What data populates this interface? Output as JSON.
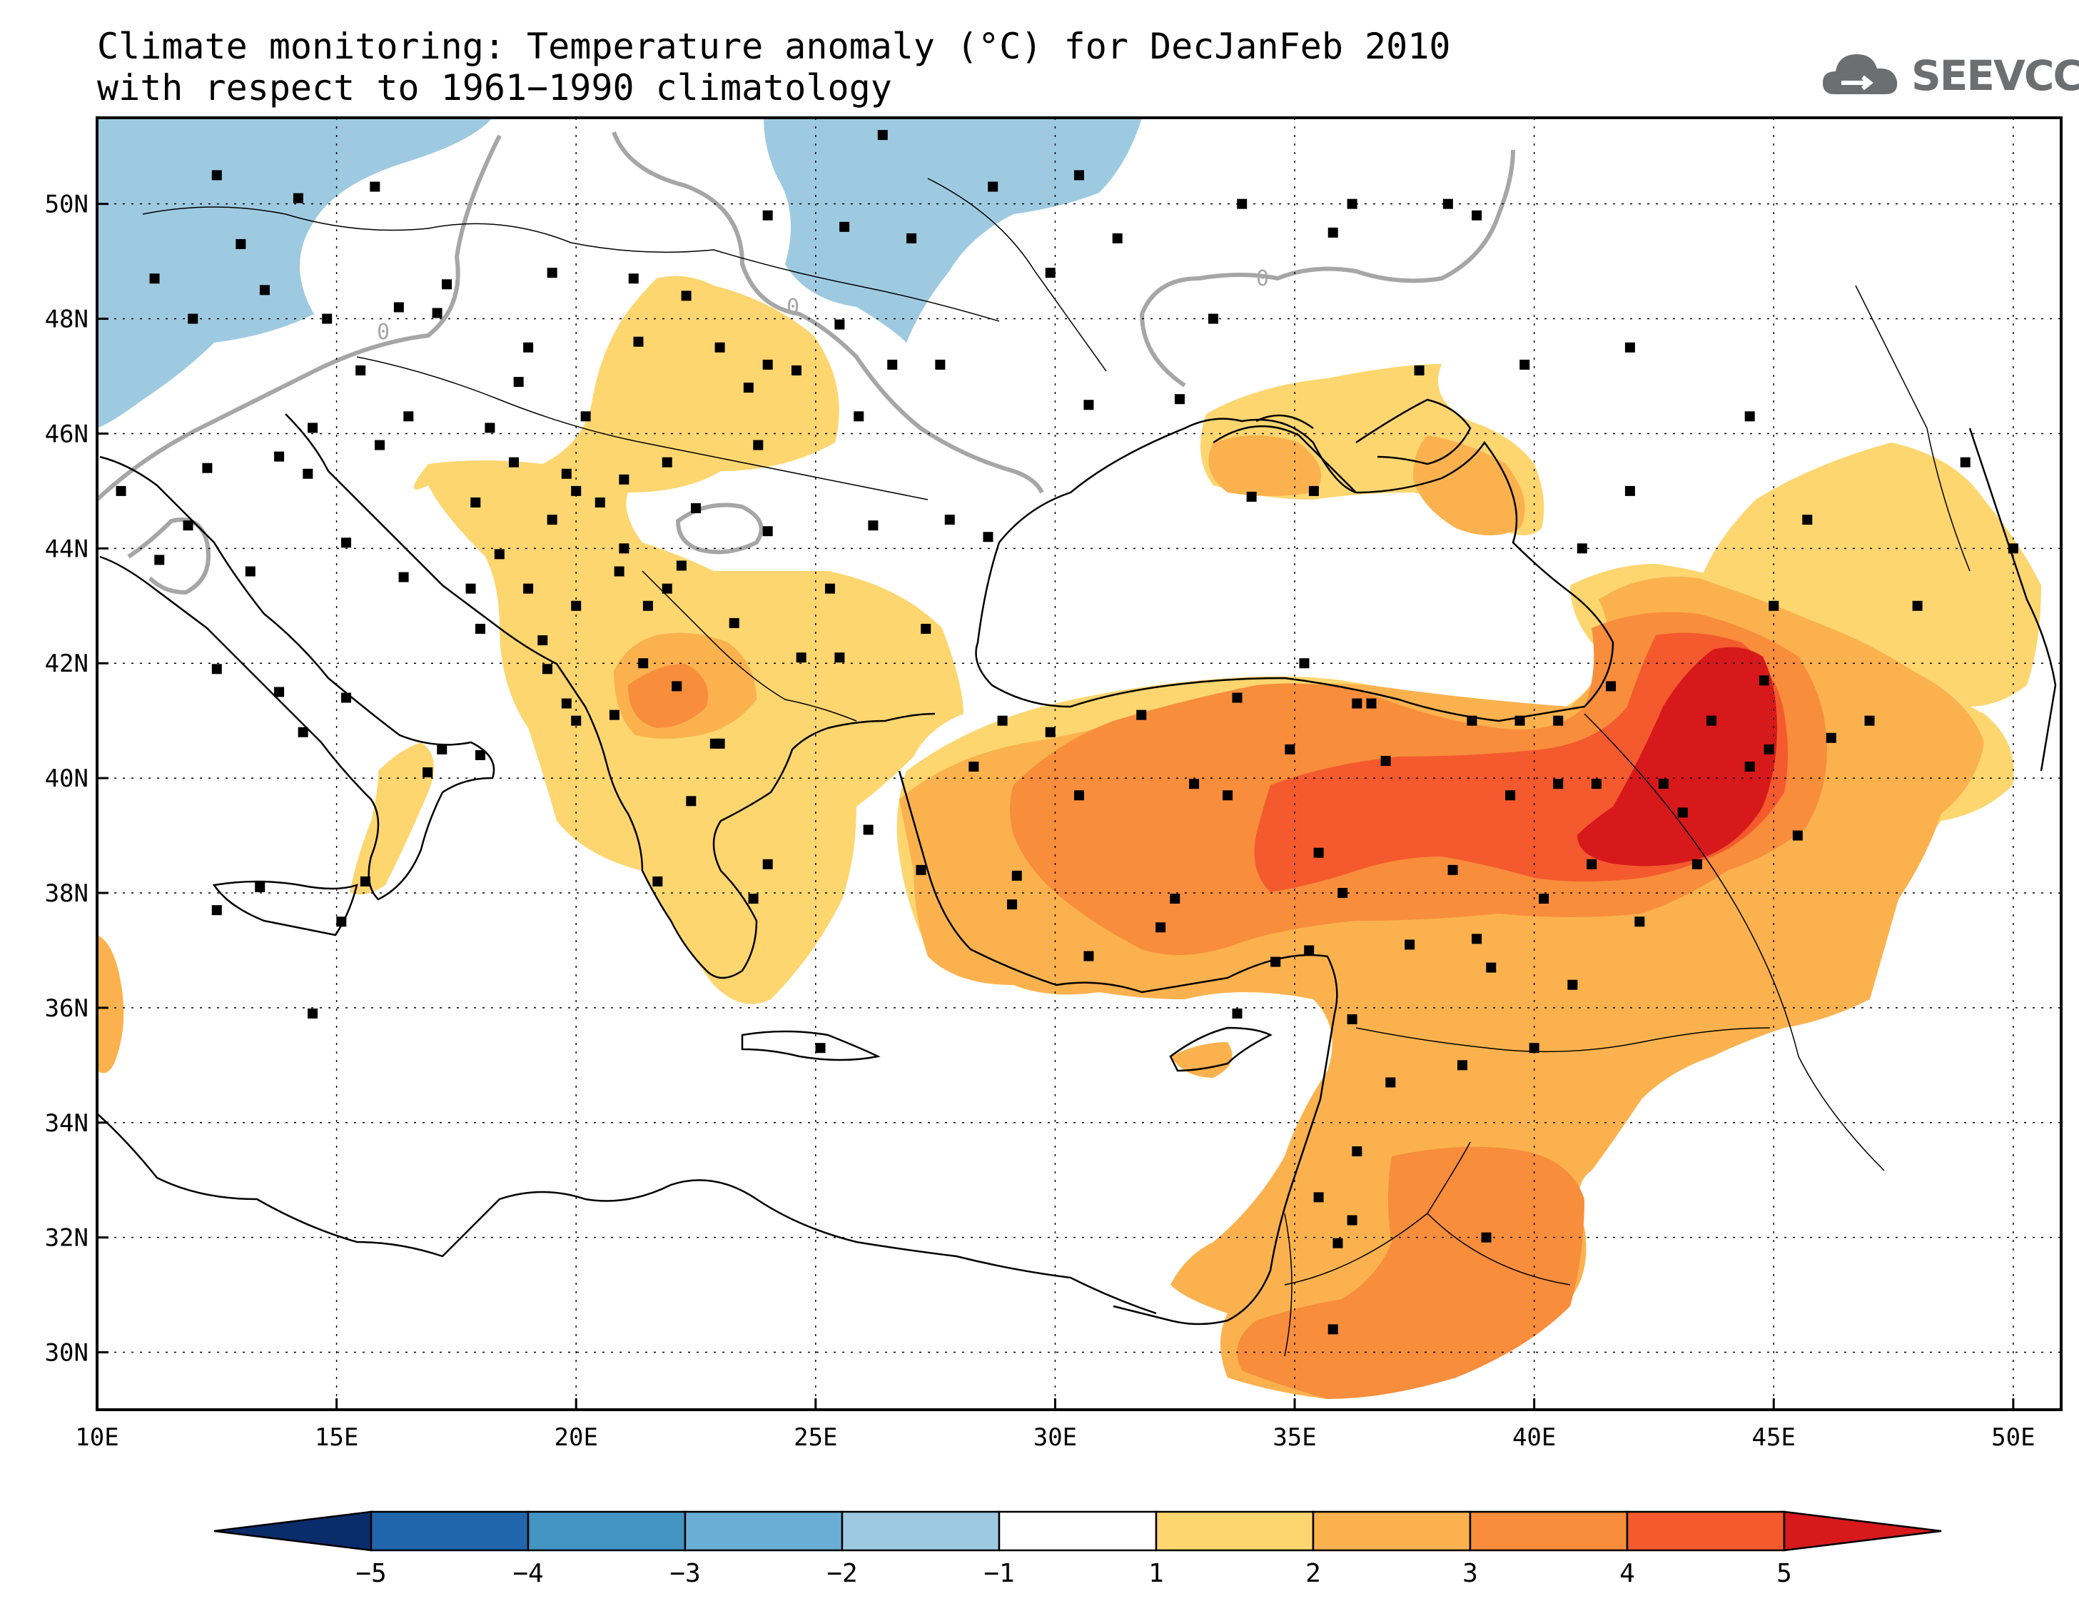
{
  "title": {
    "line1": "Climate monitoring: Temperature anomaly (°C) for DecJanFeb 2010",
    "line2": "with respect to 1961−1990 climatology"
  },
  "logo": {
    "text": "SEEVCCC",
    "icon": "cloud-icon"
  },
  "map": {
    "lon_range": [
      10,
      51
    ],
    "lat_range": [
      29,
      51.5
    ],
    "x_ticks": [
      "10E",
      "15E",
      "20E",
      "25E",
      "30E",
      "35E",
      "40E",
      "45E",
      "50E"
    ],
    "y_ticks": [
      "30N",
      "32N",
      "34N",
      "36N",
      "38N",
      "40N",
      "42N",
      "44N",
      "46N",
      "48N",
      "50N"
    ],
    "contour_label": "0",
    "grid": "dotted"
  },
  "colorbar": {
    "labels": [
      "−5",
      "−4",
      "−3",
      "−2",
      "−1",
      "1",
      "2",
      "3",
      "4",
      "5"
    ],
    "colors": [
      "#0b2c6b",
      "#2166ac",
      "#4393c3",
      "#6aaed6",
      "#9ecae1",
      "#ffffff",
      "#fdd670",
      "#fbb24e",
      "#f88d3c",
      "#f45a2d",
      "#d7191c"
    ]
  }
}
